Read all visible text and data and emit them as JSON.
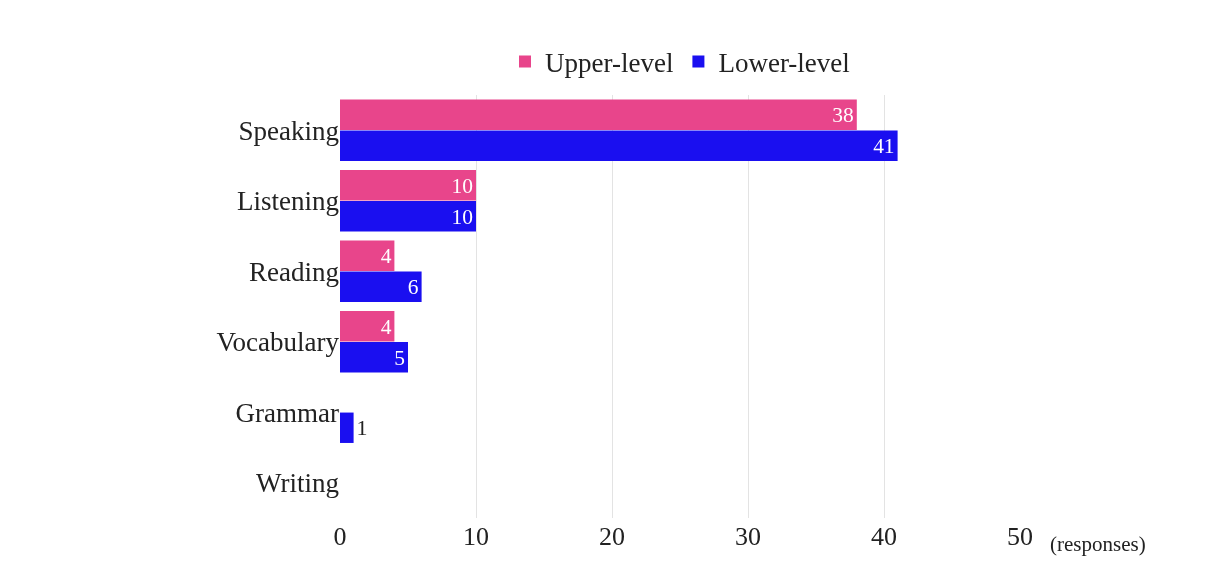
{
  "chart_data": {
    "type": "bar",
    "orientation": "horizontal",
    "xlabel": "(responses)",
    "categories": [
      "Speaking",
      "Listening",
      "Reading",
      "Vocabulary",
      "Grammar",
      "Writing"
    ],
    "series": [
      {
        "name": "Upper-level",
        "color": "#e8458b",
        "values": [
          38,
          10,
          4,
          4,
          null,
          null
        ]
      },
      {
        "name": "Lower-level",
        "color": "#1a0ff0",
        "values": [
          41,
          10,
          6,
          5,
          1,
          null
        ]
      }
    ],
    "xlim": [
      0,
      50
    ],
    "xticks": [
      0,
      10,
      20,
      30,
      40,
      50
    ],
    "grid": "x",
    "legend": "top",
    "data_labels": true
  }
}
